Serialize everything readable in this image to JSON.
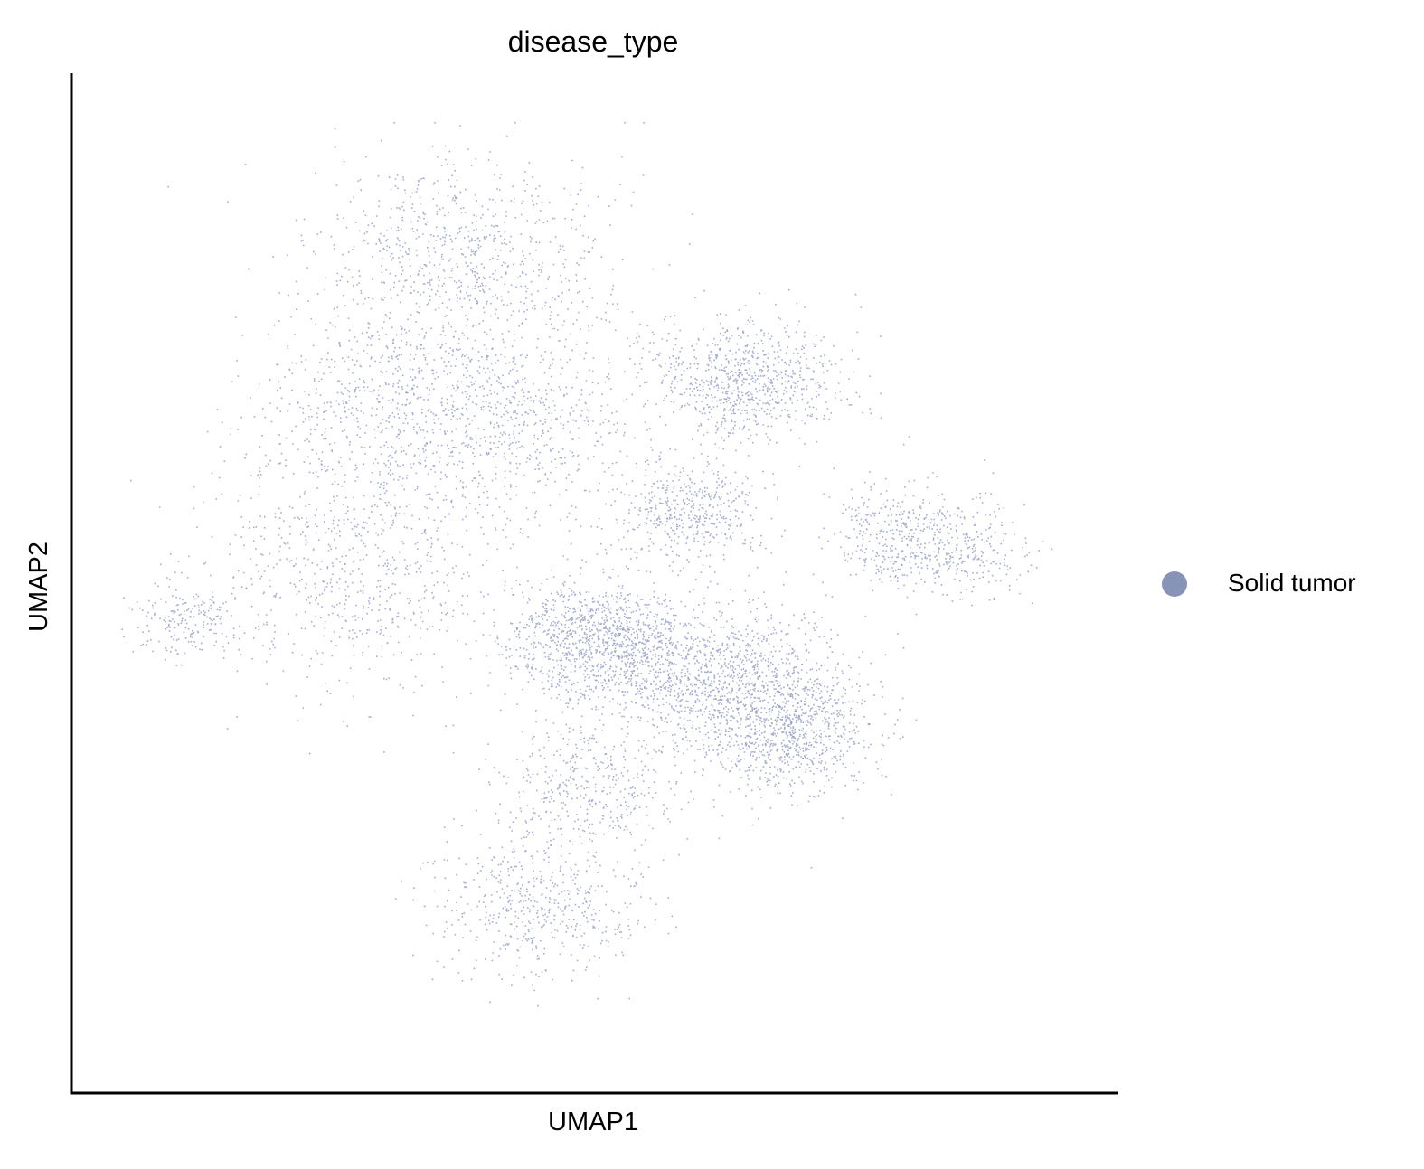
{
  "chart_data": {
    "type": "scatter",
    "title": "disease_type",
    "xlabel": "UMAP1",
    "ylabel": "UMAP2",
    "xlim": [
      0,
      100
    ],
    "ylim": [
      0,
      100
    ],
    "grid": false,
    "legend_placement": "right",
    "series": [
      {
        "name": "Solid tumor",
        "color": "#8893b8",
        "density_regions": [
          {
            "cx": 36,
            "cy": 85,
            "rx": 14,
            "ry": 10,
            "weight": 12
          },
          {
            "cx": 28,
            "cy": 70,
            "rx": 12,
            "ry": 10,
            "weight": 9
          },
          {
            "cx": 42,
            "cy": 68,
            "rx": 12,
            "ry": 11,
            "weight": 10
          },
          {
            "cx": 25,
            "cy": 52,
            "rx": 14,
            "ry": 12,
            "weight": 11
          },
          {
            "cx": 7,
            "cy": 46,
            "rx": 5,
            "ry": 4,
            "weight": 3
          },
          {
            "cx": 66,
            "cy": 72,
            "rx": 9,
            "ry": 6,
            "weight": 12
          },
          {
            "cx": 60,
            "cy": 58,
            "rx": 7,
            "ry": 5,
            "weight": 7
          },
          {
            "cx": 50,
            "cy": 44,
            "rx": 9,
            "ry": 6,
            "weight": 16
          },
          {
            "cx": 62,
            "cy": 40,
            "rx": 12,
            "ry": 7,
            "weight": 17
          },
          {
            "cx": 70,
            "cy": 34,
            "rx": 8,
            "ry": 6,
            "weight": 13
          },
          {
            "cx": 49,
            "cy": 28,
            "rx": 9,
            "ry": 6,
            "weight": 6
          },
          {
            "cx": 44,
            "cy": 15,
            "rx": 10,
            "ry": 7,
            "weight": 8
          },
          {
            "cx": 87,
            "cy": 54,
            "rx": 8,
            "ry": 5,
            "weight": 6
          },
          {
            "cx": 80,
            "cy": 56,
            "rx": 5,
            "ry": 5,
            "weight": 3
          }
        ]
      }
    ]
  }
}
